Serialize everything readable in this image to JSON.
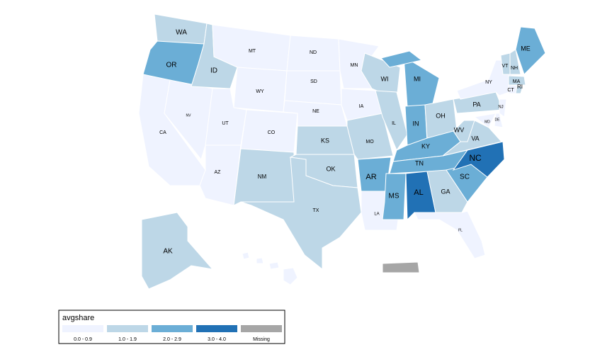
{
  "map": {
    "regions": [
      {
        "name": "WA",
        "color": "#bdd7e7"
      },
      {
        "name": "OR",
        "color": "#6baed6"
      },
      {
        "name": "CA",
        "color": "#eff3ff"
      },
      {
        "name": "NV",
        "color": "#eff3ff"
      },
      {
        "name": "ID",
        "color": "#bdd7e7"
      },
      {
        "name": "MT",
        "color": "#eff3ff"
      },
      {
        "name": "WY",
        "color": "#eff3ff"
      },
      {
        "name": "UT",
        "color": "#eff3ff"
      },
      {
        "name": "AZ",
        "color": "#eff3ff"
      },
      {
        "name": "CO",
        "color": "#eff3ff"
      },
      {
        "name": "NM",
        "color": "#bdd7e7"
      },
      {
        "name": "ND",
        "color": "#eff3ff"
      },
      {
        "name": "SD",
        "color": "#eff3ff"
      },
      {
        "name": "NE",
        "color": "#eff3ff"
      },
      {
        "name": "KS",
        "color": "#bdd7e7"
      },
      {
        "name": "OK",
        "color": "#bdd7e7"
      },
      {
        "name": "TX",
        "color": "#bdd7e7"
      },
      {
        "name": "MN",
        "color": "#eff3ff"
      },
      {
        "name": "IA",
        "color": "#eff3ff"
      },
      {
        "name": "MO",
        "color": "#bdd7e7"
      },
      {
        "name": "AR",
        "color": "#6baed6"
      },
      {
        "name": "LA",
        "color": "#eff3ff"
      },
      {
        "name": "WI",
        "color": "#bdd7e7"
      },
      {
        "name": "IL",
        "color": "#bdd7e7"
      },
      {
        "name": "MI",
        "color": "#6baed6"
      },
      {
        "name": "IN",
        "color": "#6baed6"
      },
      {
        "name": "OH",
        "color": "#bdd7e7"
      },
      {
        "name": "KY",
        "color": "#6baed6"
      },
      {
        "name": "TN",
        "color": "#6baed6"
      },
      {
        "name": "MS",
        "color": "#6baed6"
      },
      {
        "name": "AL",
        "color": "#2171b5"
      },
      {
        "name": "GA",
        "color": "#bdd7e7"
      },
      {
        "name": "FL",
        "color": "#eff3ff"
      },
      {
        "name": "SC",
        "color": "#6baed6"
      },
      {
        "name": "NC",
        "color": "#2171b5"
      },
      {
        "name": "VA",
        "color": "#bdd7e7"
      },
      {
        "name": "WV",
        "color": "#bdd7e7"
      },
      {
        "name": "PA",
        "color": "#bdd7e7"
      },
      {
        "name": "NY",
        "color": "#eff3ff"
      },
      {
        "name": "MD",
        "color": "#eff3ff"
      },
      {
        "name": "DE",
        "color": "#eff3ff"
      },
      {
        "name": "NJ",
        "color": "#eff3ff"
      },
      {
        "name": "VT",
        "color": "#bdd7e7"
      },
      {
        "name": "NH",
        "color": "#bdd7e7"
      },
      {
        "name": "ME",
        "color": "#6baed6"
      },
      {
        "name": "MA",
        "color": "#bdd7e7"
      },
      {
        "name": "CT",
        "color": "#eff3ff"
      },
      {
        "name": "RI",
        "color": "#bdd7e7"
      },
      {
        "name": "AK",
        "color": "#bdd7e7"
      },
      {
        "color": "#eff3ff"
      },
      {
        "color": "#a6a6a6"
      }
    ],
    "legend": {
      "title": "avgshare",
      "items": [
        {
          "label": "0.0 - 0.9",
          "color": "#eff3ff"
        },
        {
          "label": "1.0 - 1.9",
          "color": "#bdd7e7"
        },
        {
          "label": "2.0 - 2.9",
          "color": "#6baed6"
        },
        {
          "label": "3.0 - 4.0",
          "color": "#2171b5"
        },
        {
          "label": "Missing",
          "color": "#a6a6a6"
        }
      ]
    }
  }
}
